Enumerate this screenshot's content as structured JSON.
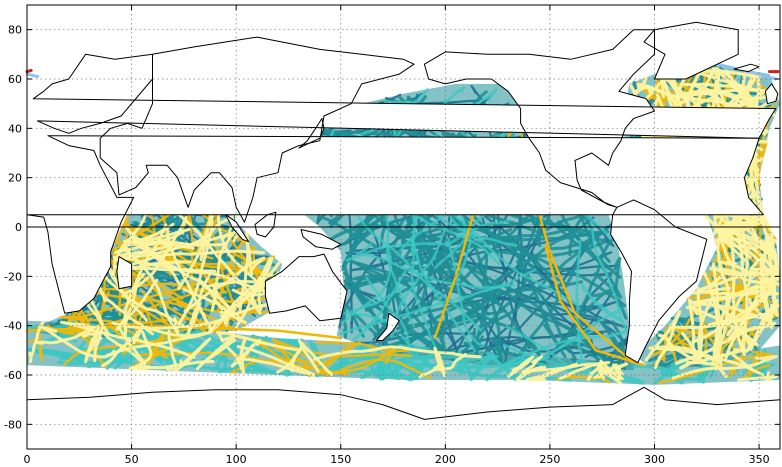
{
  "x_ticks": [
    "0",
    "50",
    "100",
    "150",
    "200",
    "250",
    "300",
    "350"
  ],
  "y_ticks": [
    "80",
    "60",
    "40",
    "20",
    "0",
    "-20",
    "-40",
    "-60",
    "-80"
  ],
  "colors": {
    "frame": "#000000",
    "coastline": "#000000",
    "dark_blue": "#1d4e89",
    "teal": "#1e8f96",
    "light_teal": "#3cc7c2",
    "gold": "#f2b705",
    "pale_yellow": "#fff3a0",
    "light_blue": "#8fc4f0",
    "red": "#cc2222"
  },
  "chart_data": {
    "type": "map",
    "xlim": [
      0,
      360
    ],
    "ylim": [
      -90,
      90
    ],
    "grid": true,
    "equator_line": true
  }
}
